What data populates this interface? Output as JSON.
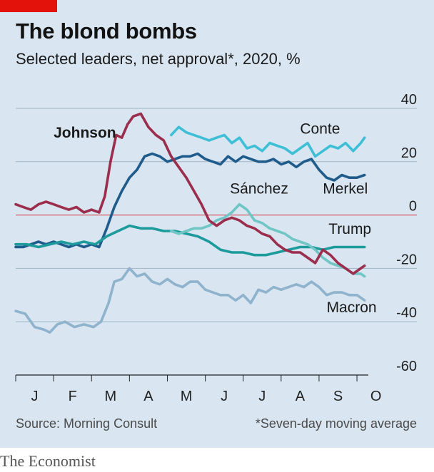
{
  "header": {
    "title": "The blond bombs",
    "subtitle": "Selected leaders, net approval*, 2020, %"
  },
  "footer": {
    "source": "Source: Morning Consult",
    "footnote": "*Seven-day moving average",
    "brand": "The Economist"
  },
  "colors": {
    "background": "#d9e6f1",
    "brand_red": "#e3120b",
    "grid": "#9fb4c4",
    "zero_line": "#d76b6b"
  },
  "chart_data": {
    "type": "line",
    "title": "The blond bombs",
    "subtitle": "Selected leaders, net approval*, 2020, %",
    "xlabel": "",
    "ylabel": "",
    "x_unit": "month of 2020",
    "xlim": [
      0.0,
      9.3
    ],
    "ylim": [
      -60,
      40
    ],
    "y_ticks": [
      40,
      20,
      0,
      -20,
      -40,
      -60
    ],
    "x_ticks": [
      "J",
      "F",
      "M",
      "A",
      "M",
      "J",
      "J",
      "A",
      "S",
      "O"
    ],
    "grid": true,
    "legend": "inline labels",
    "series": [
      {
        "name": "Macron",
        "color": "#8fb3cc",
        "label_x": 8.2,
        "label_y": -36.5,
        "points": [
          [
            0.0,
            -36
          ],
          [
            0.25,
            -37
          ],
          [
            0.5,
            -42
          ],
          [
            0.75,
            -43
          ],
          [
            0.9,
            -44
          ],
          [
            1.1,
            -41
          ],
          [
            1.3,
            -40
          ],
          [
            1.55,
            -42
          ],
          [
            1.8,
            -41
          ],
          [
            2.05,
            -42
          ],
          [
            2.25,
            -40
          ],
          [
            2.45,
            -33
          ],
          [
            2.6,
            -25
          ],
          [
            2.8,
            -24
          ],
          [
            3.0,
            -20
          ],
          [
            3.2,
            -23
          ],
          [
            3.4,
            -22
          ],
          [
            3.6,
            -25
          ],
          [
            3.8,
            -26
          ],
          [
            4.0,
            -24
          ],
          [
            4.2,
            -26
          ],
          [
            4.4,
            -27
          ],
          [
            4.6,
            -25
          ],
          [
            4.8,
            -25
          ],
          [
            5.0,
            -28
          ],
          [
            5.2,
            -29
          ],
          [
            5.4,
            -30
          ],
          [
            5.6,
            -30
          ],
          [
            5.8,
            -32
          ],
          [
            6.0,
            -30
          ],
          [
            6.2,
            -33
          ],
          [
            6.4,
            -28
          ],
          [
            6.6,
            -29
          ],
          [
            6.8,
            -27
          ],
          [
            7.0,
            -28
          ],
          [
            7.2,
            -27
          ],
          [
            7.4,
            -26
          ],
          [
            7.6,
            -27
          ],
          [
            7.8,
            -25
          ],
          [
            8.0,
            -27
          ],
          [
            8.2,
            -30
          ],
          [
            8.4,
            -29
          ],
          [
            8.6,
            -29
          ],
          [
            8.8,
            -30
          ],
          [
            9.0,
            -30
          ],
          [
            9.2,
            -32
          ]
        ]
      },
      {
        "name": "Merkel",
        "color": "#1f5c8b",
        "label_x": 8.1,
        "label_y": 8.0,
        "points": [
          [
            0.0,
            -12
          ],
          [
            0.2,
            -12
          ],
          [
            0.4,
            -11
          ],
          [
            0.6,
            -10
          ],
          [
            0.8,
            -11
          ],
          [
            1.0,
            -10
          ],
          [
            1.2,
            -11
          ],
          [
            1.4,
            -12
          ],
          [
            1.6,
            -11
          ],
          [
            1.8,
            -12
          ],
          [
            2.0,
            -11
          ],
          [
            2.2,
            -12
          ],
          [
            2.4,
            -5
          ],
          [
            2.6,
            3
          ],
          [
            2.8,
            9
          ],
          [
            3.0,
            14
          ],
          [
            3.2,
            17
          ],
          [
            3.4,
            22
          ],
          [
            3.6,
            23
          ],
          [
            3.8,
            22
          ],
          [
            4.0,
            20
          ],
          [
            4.2,
            21
          ],
          [
            4.4,
            22
          ],
          [
            4.6,
            22
          ],
          [
            4.8,
            23
          ],
          [
            5.0,
            21
          ],
          [
            5.2,
            20
          ],
          [
            5.4,
            19
          ],
          [
            5.6,
            22
          ],
          [
            5.8,
            20
          ],
          [
            6.0,
            22
          ],
          [
            6.2,
            21
          ],
          [
            6.4,
            20
          ],
          [
            6.6,
            20
          ],
          [
            6.8,
            21
          ],
          [
            7.0,
            19
          ],
          [
            7.2,
            20
          ],
          [
            7.4,
            18
          ],
          [
            7.6,
            20
          ],
          [
            7.8,
            21
          ],
          [
            8.0,
            17
          ],
          [
            8.2,
            14
          ],
          [
            8.4,
            13
          ],
          [
            8.6,
            15
          ],
          [
            8.8,
            14
          ],
          [
            9.0,
            14
          ],
          [
            9.2,
            15
          ]
        ]
      },
      {
        "name": "Trump",
        "color": "#1d9a9b",
        "label_x": 8.25,
        "label_y": -7.0,
        "points": [
          [
            0.0,
            -11
          ],
          [
            0.3,
            -11
          ],
          [
            0.6,
            -12
          ],
          [
            0.9,
            -11
          ],
          [
            1.2,
            -10
          ],
          [
            1.5,
            -11
          ],
          [
            1.8,
            -10
          ],
          [
            2.1,
            -11
          ],
          [
            2.4,
            -8
          ],
          [
            2.7,
            -6
          ],
          [
            3.0,
            -4
          ],
          [
            3.3,
            -5
          ],
          [
            3.6,
            -5
          ],
          [
            3.9,
            -6
          ],
          [
            4.2,
            -6
          ],
          [
            4.5,
            -7
          ],
          [
            4.8,
            -8
          ],
          [
            5.1,
            -10
          ],
          [
            5.4,
            -13
          ],
          [
            5.7,
            -14
          ],
          [
            6.0,
            -14
          ],
          [
            6.3,
            -15
          ],
          [
            6.6,
            -15
          ],
          [
            6.9,
            -14
          ],
          [
            7.2,
            -13
          ],
          [
            7.5,
            -12
          ],
          [
            7.8,
            -12
          ],
          [
            8.1,
            -13
          ],
          [
            8.4,
            -12
          ],
          [
            8.7,
            -12
          ],
          [
            9.0,
            -12
          ],
          [
            9.2,
            -12
          ]
        ]
      },
      {
        "name": "Sánchez",
        "color": "#6fc6c5",
        "label_x": 5.65,
        "label_y": 8.0,
        "points": [
          [
            4.1,
            -6
          ],
          [
            4.3,
            -7
          ],
          [
            4.5,
            -6
          ],
          [
            4.7,
            -5
          ],
          [
            4.9,
            -5
          ],
          [
            5.1,
            -4
          ],
          [
            5.3,
            -2
          ],
          [
            5.5,
            -1
          ],
          [
            5.7,
            1
          ],
          [
            5.9,
            4
          ],
          [
            6.1,
            2
          ],
          [
            6.3,
            -2
          ],
          [
            6.5,
            -3
          ],
          [
            6.7,
            -5
          ],
          [
            6.9,
            -6
          ],
          [
            7.1,
            -7
          ],
          [
            7.3,
            -9
          ],
          [
            7.5,
            -10
          ],
          [
            7.7,
            -11
          ],
          [
            7.9,
            -13
          ],
          [
            8.1,
            -16
          ],
          [
            8.3,
            -18
          ],
          [
            8.5,
            -19
          ],
          [
            8.7,
            -20
          ],
          [
            8.9,
            -22
          ],
          [
            9.1,
            -22
          ],
          [
            9.2,
            -23
          ]
        ]
      },
      {
        "name": "Conte",
        "color": "#3ebfd6",
        "label_x": 7.5,
        "label_y": 30.5,
        "points": [
          [
            4.1,
            30
          ],
          [
            4.3,
            33
          ],
          [
            4.5,
            31
          ],
          [
            4.7,
            30
          ],
          [
            4.9,
            29
          ],
          [
            5.1,
            28
          ],
          [
            5.3,
            29
          ],
          [
            5.5,
            30
          ],
          [
            5.7,
            27
          ],
          [
            5.9,
            29
          ],
          [
            6.1,
            25
          ],
          [
            6.3,
            26
          ],
          [
            6.5,
            24
          ],
          [
            6.7,
            27
          ],
          [
            6.9,
            26
          ],
          [
            7.1,
            25
          ],
          [
            7.3,
            23
          ],
          [
            7.5,
            25
          ],
          [
            7.7,
            27
          ],
          [
            7.9,
            22
          ],
          [
            8.1,
            24
          ],
          [
            8.3,
            26
          ],
          [
            8.5,
            25
          ],
          [
            8.7,
            27
          ],
          [
            8.9,
            24
          ],
          [
            9.1,
            27
          ],
          [
            9.2,
            29
          ]
        ]
      },
      {
        "name": "Johnson",
        "color": "#9b2d4d",
        "label_x": 1.0,
        "label_y": 29.0,
        "label_bold": true,
        "points": [
          [
            0.0,
            4
          ],
          [
            0.2,
            3
          ],
          [
            0.4,
            2
          ],
          [
            0.6,
            4
          ],
          [
            0.8,
            5
          ],
          [
            1.0,
            4
          ],
          [
            1.2,
            3
          ],
          [
            1.4,
            2
          ],
          [
            1.6,
            3
          ],
          [
            1.8,
            1
          ],
          [
            2.0,
            2
          ],
          [
            2.2,
            1
          ],
          [
            2.35,
            7
          ],
          [
            2.5,
            20
          ],
          [
            2.65,
            30
          ],
          [
            2.8,
            29
          ],
          [
            2.95,
            34
          ],
          [
            3.1,
            37
          ],
          [
            3.3,
            38
          ],
          [
            3.5,
            33
          ],
          [
            3.7,
            30
          ],
          [
            3.9,
            28
          ],
          [
            4.1,
            22
          ],
          [
            4.3,
            18
          ],
          [
            4.5,
            14
          ],
          [
            4.7,
            9
          ],
          [
            4.9,
            4
          ],
          [
            5.1,
            -2
          ],
          [
            5.3,
            -4
          ],
          [
            5.5,
            -2
          ],
          [
            5.7,
            -1
          ],
          [
            5.9,
            -2
          ],
          [
            6.1,
            -4
          ],
          [
            6.3,
            -5
          ],
          [
            6.5,
            -7
          ],
          [
            6.7,
            -8
          ],
          [
            6.9,
            -11
          ],
          [
            7.1,
            -13
          ],
          [
            7.3,
            -14
          ],
          [
            7.5,
            -14
          ],
          [
            7.7,
            -16
          ],
          [
            7.9,
            -18
          ],
          [
            8.1,
            -13
          ],
          [
            8.3,
            -15
          ],
          [
            8.5,
            -18
          ],
          [
            8.7,
            -20
          ],
          [
            8.9,
            -22
          ],
          [
            9.1,
            -20
          ],
          [
            9.2,
            -19
          ]
        ]
      }
    ]
  }
}
